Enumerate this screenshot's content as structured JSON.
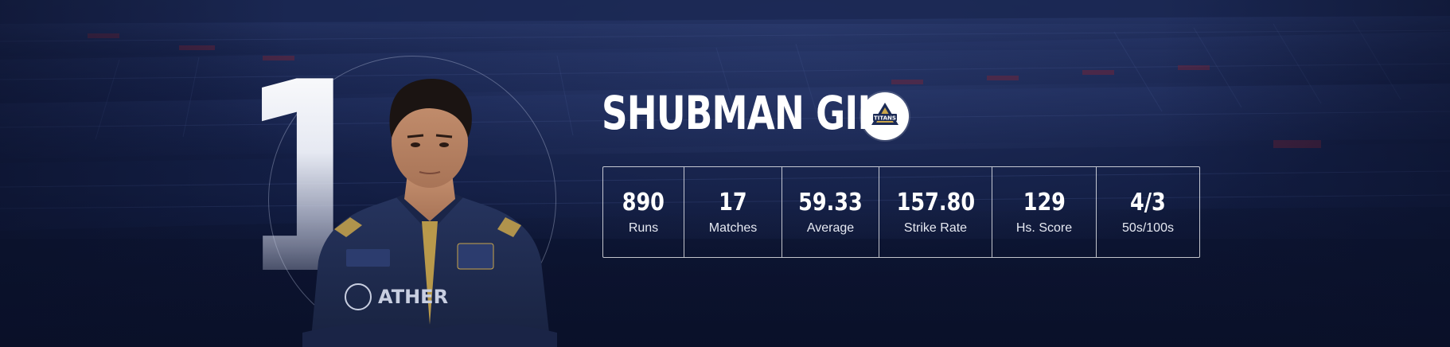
{
  "player": {
    "rank": "1",
    "name": "SHUBMAN GILL",
    "team_logo_text": "TITANS",
    "jersey_sponsor": "ATHER"
  },
  "stats": [
    {
      "value": "890",
      "label": "Runs"
    },
    {
      "value": "17",
      "label": "Matches"
    },
    {
      "value": "59.33",
      "label": "Average"
    },
    {
      "value": "157.80",
      "label": "Strike Rate"
    },
    {
      "value": "129",
      "label": "Hs. Score"
    },
    {
      "value": "4/3",
      "label": "50s/100s"
    }
  ],
  "colors": {
    "background": "#101a3c",
    "jersey": "#1e2a4f",
    "accent_gold": "#c9a54a"
  }
}
